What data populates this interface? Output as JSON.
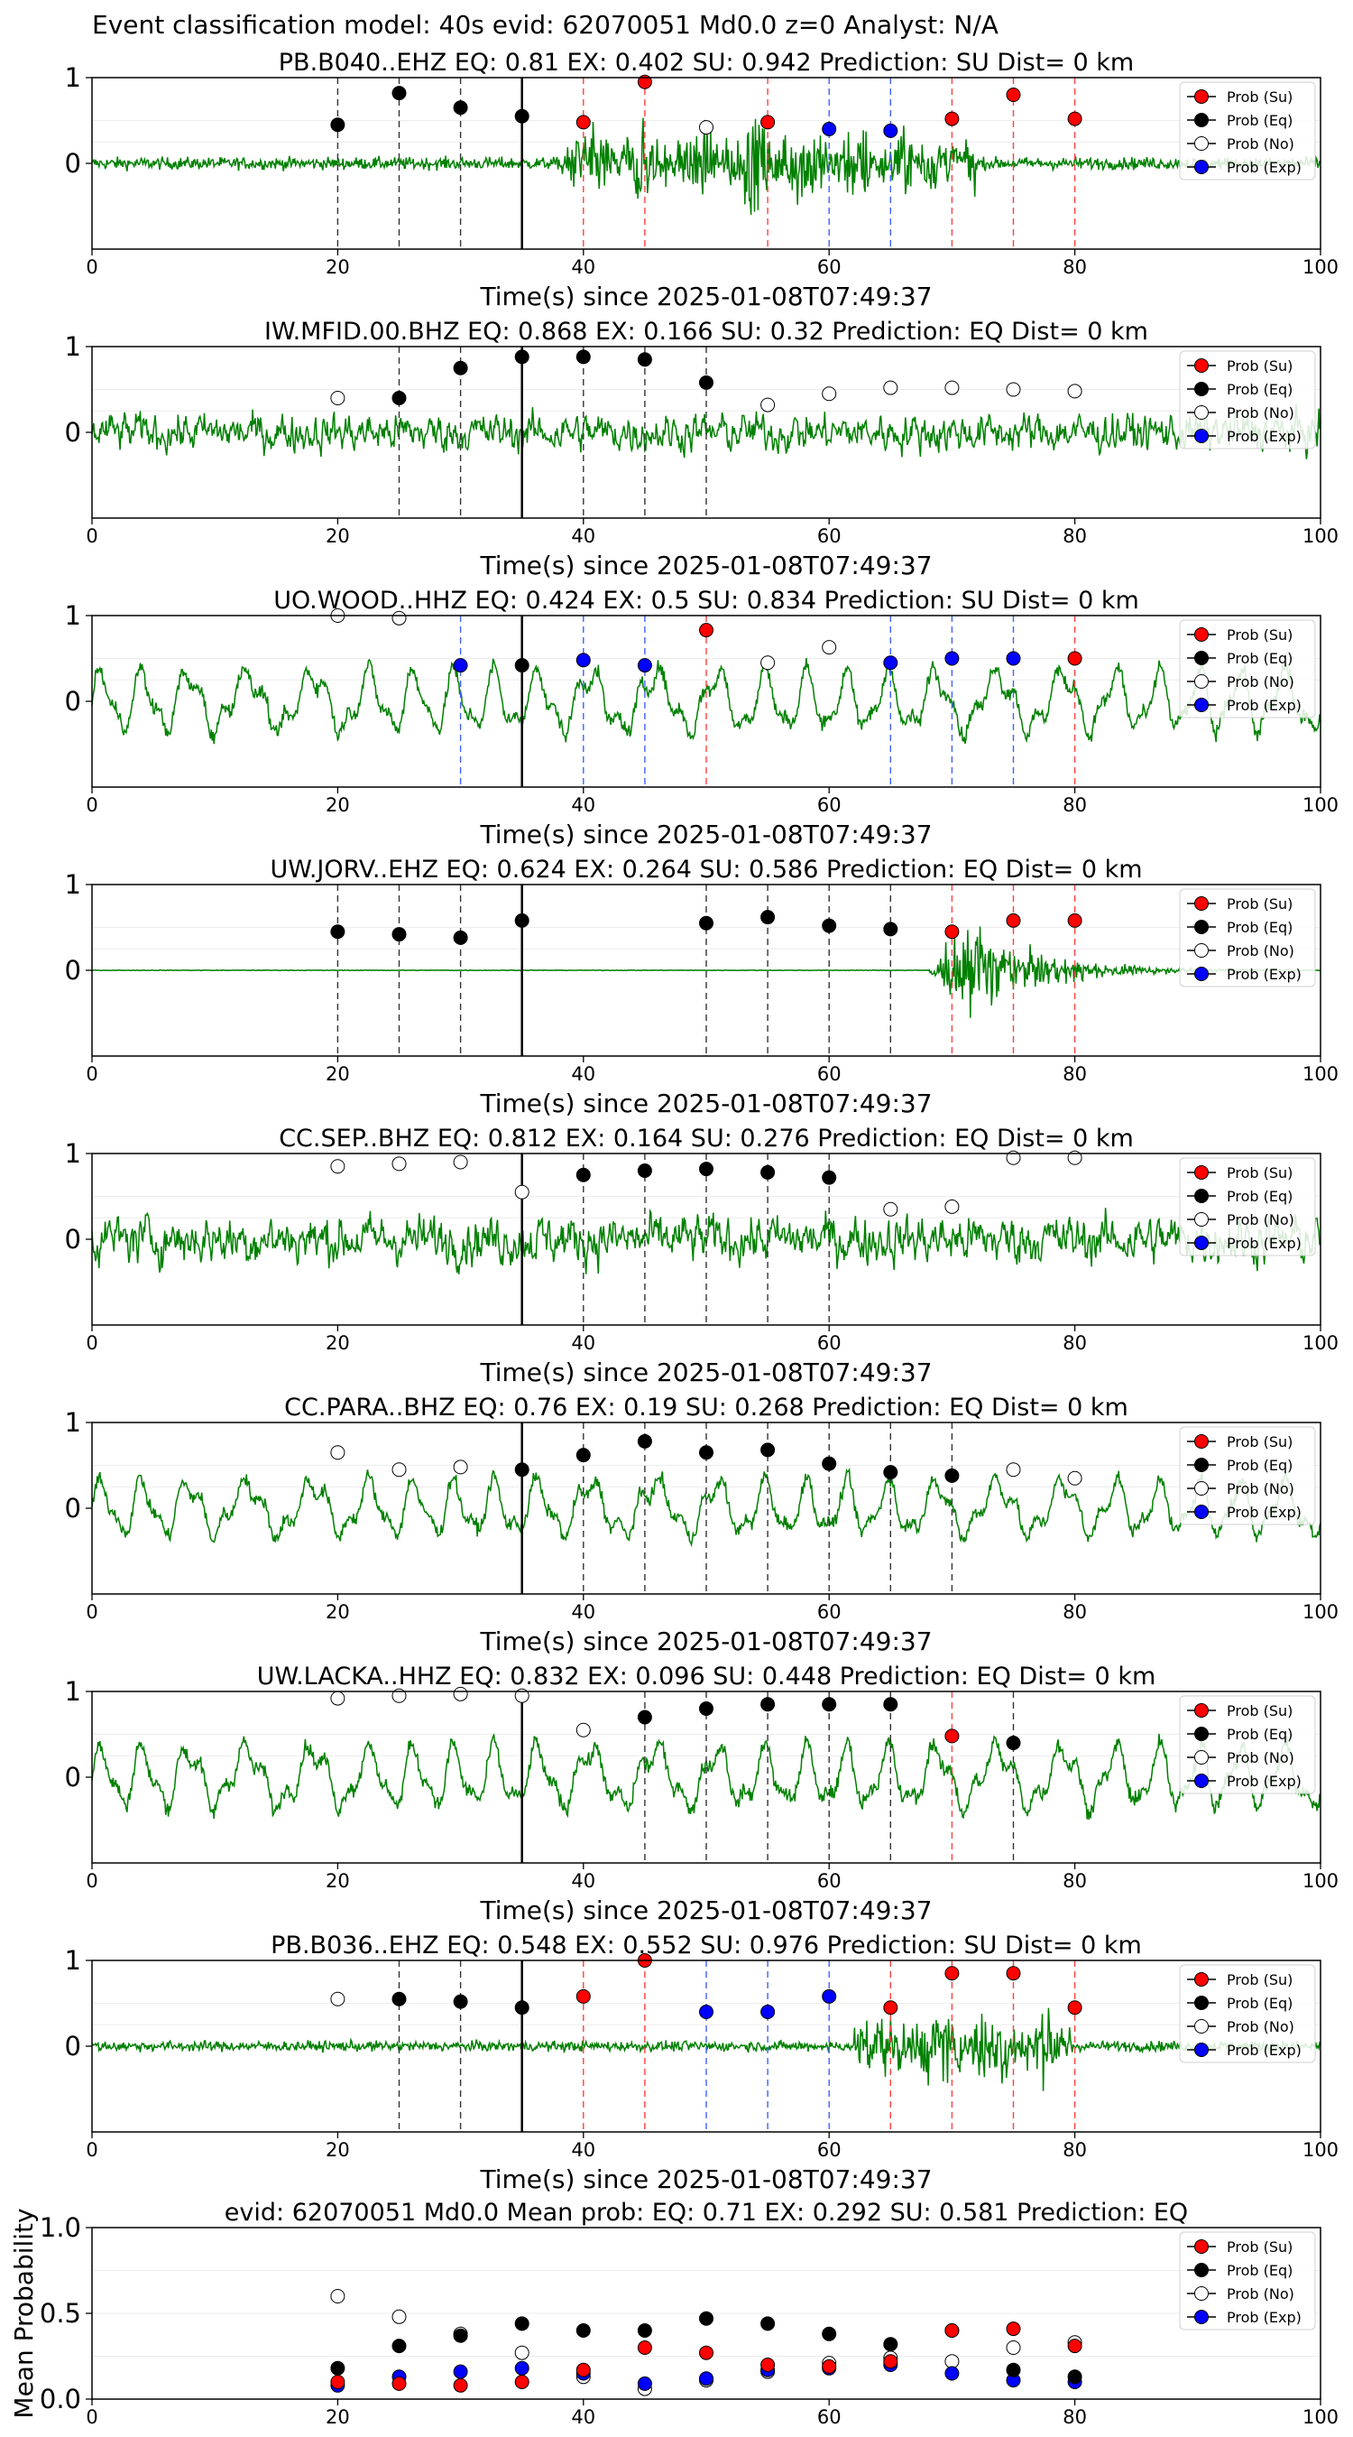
{
  "suptitle": "Event classification model: 40s evid: 62070051 Md0.0 z=0 Analyst: N/A",
  "xlabel": "Time(s) since 2025-01-08T07:49:37",
  "legend_labels": [
    "Prob (Su)",
    "Prob (Eq)",
    "Prob (No)",
    "Prob (Exp)"
  ],
  "colors": {
    "su": "#ff0000",
    "eq": "#000000",
    "no": "#ffffff",
    "exp": "#0000ff",
    "wave": "#008000"
  },
  "chart_data": [
    {
      "type": "scatter",
      "title": "PB.B040..EHZ   EQ: 0.81  EX: 0.402  SU: 0.942   Prediction: SU    Dist= 0 km",
      "xlim": [
        0,
        100
      ],
      "ylim": [
        -1,
        1
      ],
      "yticks": [
        0,
        1
      ],
      "xticks": [
        0,
        20,
        40,
        60,
        80,
        100
      ],
      "arrival": 35,
      "wave_amp": 0.12,
      "wave_style": "burst",
      "burst": [
        38,
        72,
        0.85
      ],
      "points": [
        [
          20,
          0.45,
          "eq"
        ],
        [
          25,
          0.82,
          "eq"
        ],
        [
          30,
          0.65,
          "eq"
        ],
        [
          35,
          0.55,
          "eq"
        ],
        [
          40,
          0.48,
          "su"
        ],
        [
          45,
          0.95,
          "su"
        ],
        [
          50,
          0.42,
          "no"
        ],
        [
          55,
          0.48,
          "su"
        ],
        [
          60,
          0.4,
          "exp"
        ],
        [
          65,
          0.38,
          "exp"
        ],
        [
          70,
          0.52,
          "su"
        ],
        [
          75,
          0.8,
          "su"
        ],
        [
          80,
          0.52,
          "su"
        ]
      ]
    },
    {
      "type": "scatter",
      "title": "IW.MFID.00.BHZ   EQ: 0.868  EX: 0.166  SU: 0.32   Prediction: EQ    Dist= 0 km",
      "xlim": [
        0,
        100
      ],
      "ylim": [
        -1,
        1
      ],
      "yticks": [
        0,
        1
      ],
      "xticks": [
        0,
        20,
        40,
        60,
        80,
        100
      ],
      "arrival": 35,
      "wave_amp": 0.32,
      "wave_style": "noise",
      "burst": [
        0,
        0,
        0
      ],
      "points": [
        [
          20,
          0.4,
          "no"
        ],
        [
          25,
          0.4,
          "eq"
        ],
        [
          30,
          0.75,
          "eq"
        ],
        [
          35,
          0.88,
          "eq"
        ],
        [
          40,
          0.88,
          "eq"
        ],
        [
          45,
          0.85,
          "eq"
        ],
        [
          50,
          0.58,
          "eq"
        ],
        [
          55,
          0.32,
          "no"
        ],
        [
          60,
          0.45,
          "no"
        ],
        [
          65,
          0.52,
          "no"
        ],
        [
          70,
          0.52,
          "no"
        ],
        [
          75,
          0.5,
          "no"
        ],
        [
          80,
          0.48,
          "no"
        ]
      ]
    },
    {
      "type": "scatter",
      "title": "UO.WOOD..HHZ   EQ: 0.424  EX: 0.5  SU: 0.834   Prediction: SU    Dist= 0 km",
      "xlim": [
        0,
        100
      ],
      "ylim": [
        -1,
        1
      ],
      "yticks": [
        0,
        1
      ],
      "xticks": [
        0,
        20,
        40,
        60,
        80,
        100
      ],
      "arrival": 35,
      "wave_amp": 0.5,
      "wave_style": "osc",
      "burst": [
        0,
        0,
        0
      ],
      "points": [
        [
          20,
          1.0,
          "no"
        ],
        [
          25,
          0.97,
          "no"
        ],
        [
          30,
          0.42,
          "exp"
        ],
        [
          35,
          0.42,
          "eq"
        ],
        [
          40,
          0.48,
          "exp"
        ],
        [
          45,
          0.42,
          "exp"
        ],
        [
          50,
          0.83,
          "su"
        ],
        [
          55,
          0.45,
          "no"
        ],
        [
          60,
          0.63,
          "no"
        ],
        [
          65,
          0.45,
          "exp"
        ],
        [
          70,
          0.5,
          "exp"
        ],
        [
          75,
          0.5,
          "exp"
        ],
        [
          80,
          0.5,
          "su"
        ]
      ]
    },
    {
      "type": "scatter",
      "title": "UW.JORV..EHZ   EQ: 0.624  EX: 0.264  SU: 0.586   Prediction: EQ    Dist= 0 km",
      "xlim": [
        0,
        100
      ],
      "ylim": [
        -1,
        1
      ],
      "yticks": [
        0,
        1
      ],
      "xticks": [
        0,
        20,
        40,
        60,
        80,
        100
      ],
      "arrival": 35,
      "wave_amp": 0.005,
      "wave_style": "quake",
      "burst": [
        68,
        95,
        0.95
      ],
      "points": [
        [
          20,
          0.45,
          "eq"
        ],
        [
          25,
          0.42,
          "eq"
        ],
        [
          30,
          0.38,
          "eq"
        ],
        [
          35,
          0.58,
          "eq"
        ],
        [
          50,
          0.55,
          "eq"
        ],
        [
          55,
          0.62,
          "eq"
        ],
        [
          60,
          0.52,
          "eq"
        ],
        [
          65,
          0.48,
          "eq"
        ],
        [
          70,
          0.45,
          "su"
        ],
        [
          75,
          0.58,
          "su"
        ],
        [
          80,
          0.58,
          "su"
        ]
      ]
    },
    {
      "type": "scatter",
      "title": "CC.SEP..BHZ   EQ: 0.812  EX: 0.164  SU: 0.276   Prediction: EQ    Dist= 0 km",
      "xlim": [
        0,
        100
      ],
      "ylim": [
        -1,
        1
      ],
      "yticks": [
        0,
        1
      ],
      "xticks": [
        0,
        20,
        40,
        60,
        80,
        100
      ],
      "arrival": 35,
      "wave_amp": 0.4,
      "wave_style": "noise",
      "burst": [
        0,
        0,
        0
      ],
      "points": [
        [
          20,
          0.85,
          "no"
        ],
        [
          25,
          0.88,
          "no"
        ],
        [
          30,
          0.9,
          "no"
        ],
        [
          35,
          0.55,
          "no"
        ],
        [
          40,
          0.75,
          "eq"
        ],
        [
          45,
          0.8,
          "eq"
        ],
        [
          50,
          0.82,
          "eq"
        ],
        [
          55,
          0.78,
          "eq"
        ],
        [
          60,
          0.72,
          "eq"
        ],
        [
          65,
          0.35,
          "no"
        ],
        [
          70,
          0.38,
          "no"
        ],
        [
          75,
          0.95,
          "no"
        ],
        [
          80,
          0.95,
          "no"
        ]
      ]
    },
    {
      "type": "scatter",
      "title": "CC.PARA..BHZ   EQ: 0.76  EX: 0.19  SU: 0.268   Prediction: EQ    Dist= 0 km",
      "xlim": [
        0,
        100
      ],
      "ylim": [
        -1,
        1
      ],
      "yticks": [
        0,
        1
      ],
      "xticks": [
        0,
        20,
        40,
        60,
        80,
        100
      ],
      "arrival": 35,
      "wave_amp": 0.45,
      "wave_style": "osc",
      "burst": [
        0,
        0,
        0
      ],
      "points": [
        [
          20,
          0.65,
          "no"
        ],
        [
          25,
          0.45,
          "no"
        ],
        [
          30,
          0.48,
          "no"
        ],
        [
          35,
          0.45,
          "eq"
        ],
        [
          40,
          0.62,
          "eq"
        ],
        [
          45,
          0.78,
          "eq"
        ],
        [
          50,
          0.65,
          "eq"
        ],
        [
          55,
          0.68,
          "eq"
        ],
        [
          60,
          0.52,
          "eq"
        ],
        [
          65,
          0.42,
          "eq"
        ],
        [
          70,
          0.38,
          "eq"
        ],
        [
          75,
          0.45,
          "no"
        ],
        [
          80,
          0.35,
          "no"
        ]
      ]
    },
    {
      "type": "scatter",
      "title": "UW.LACKA..HHZ   EQ: 0.832  EX: 0.096  SU: 0.448   Prediction: EQ    Dist= 0 km",
      "xlim": [
        0,
        100
      ],
      "ylim": [
        -1,
        1
      ],
      "yticks": [
        0,
        1
      ],
      "xticks": [
        0,
        20,
        40,
        60,
        80,
        100
      ],
      "arrival": 35,
      "wave_amp": 0.5,
      "wave_style": "osc",
      "burst": [
        0,
        0,
        0
      ],
      "points": [
        [
          20,
          0.92,
          "no"
        ],
        [
          25,
          0.95,
          "no"
        ],
        [
          30,
          0.97,
          "no"
        ],
        [
          35,
          0.95,
          "no"
        ],
        [
          40,
          0.55,
          "no"
        ],
        [
          45,
          0.7,
          "eq"
        ],
        [
          50,
          0.8,
          "eq"
        ],
        [
          55,
          0.85,
          "eq"
        ],
        [
          60,
          0.85,
          "eq"
        ],
        [
          65,
          0.85,
          "eq"
        ],
        [
          70,
          0.48,
          "su"
        ],
        [
          75,
          0.4,
          "eq"
        ]
      ]
    },
    {
      "type": "scatter",
      "title": "PB.B036..EHZ   EQ: 0.548  EX: 0.552  SU: 0.976   Prediction: SU    Dist= 0 km",
      "xlim": [
        0,
        100
      ],
      "ylim": [
        -1,
        1
      ],
      "yticks": [
        0,
        1
      ],
      "xticks": [
        0,
        20,
        40,
        60,
        80,
        100
      ],
      "arrival": 35,
      "wave_amp": 0.1,
      "wave_style": "burst",
      "burst": [
        62,
        80,
        0.8
      ],
      "points": [
        [
          20,
          0.55,
          "no"
        ],
        [
          25,
          0.55,
          "eq"
        ],
        [
          30,
          0.52,
          "eq"
        ],
        [
          35,
          0.45,
          "eq"
        ],
        [
          40,
          0.58,
          "su"
        ],
        [
          45,
          1.0,
          "su"
        ],
        [
          50,
          0.4,
          "exp"
        ],
        [
          55,
          0.4,
          "exp"
        ],
        [
          60,
          0.58,
          "exp"
        ],
        [
          65,
          0.45,
          "su"
        ],
        [
          70,
          0.85,
          "su"
        ],
        [
          75,
          0.85,
          "su"
        ],
        [
          80,
          0.45,
          "su"
        ]
      ]
    },
    {
      "type": "scatter",
      "title": "evid: 62070051  Md0.0   Mean prob:   EQ: 0.71  EX: 0.292  SU: 0.581   Prediction: EQ",
      "ylabel": "Mean Probability",
      "xlim": [
        0,
        100
      ],
      "ylim": [
        0,
        1
      ],
      "yticks": [
        0.0,
        0.5,
        1.0
      ],
      "xticks": [
        0,
        20,
        40,
        60,
        80,
        100
      ],
      "series": {
        "x": [
          20,
          25,
          30,
          35,
          40,
          45,
          50,
          55,
          60,
          65,
          70,
          75,
          80
        ],
        "eq": [
          0.18,
          0.31,
          0.37,
          0.44,
          0.4,
          0.4,
          0.47,
          0.44,
          0.38,
          0.32,
          0.4,
          0.17,
          0.13
        ],
        "su": [
          0.1,
          0.09,
          0.08,
          0.1,
          0.17,
          0.3,
          0.27,
          0.2,
          0.19,
          0.22,
          0.4,
          0.41,
          0.31
        ],
        "no": [
          0.6,
          0.48,
          0.38,
          0.27,
          0.13,
          0.06,
          0.11,
          0.16,
          0.21,
          0.24,
          0.22,
          0.3,
          0.33
        ],
        "exp": [
          0.08,
          0.13,
          0.16,
          0.18,
          0.15,
          0.09,
          0.12,
          0.17,
          0.18,
          0.2,
          0.15,
          0.11,
          0.1
        ]
      }
    }
  ]
}
